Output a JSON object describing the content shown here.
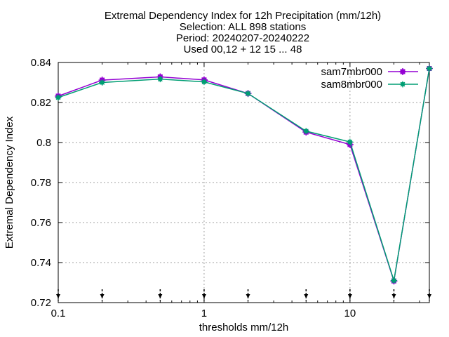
{
  "chart_data": {
    "type": "line",
    "title_lines": [
      "Extremal Dependency Index  for 12h Precipitation (mm/12h)",
      "Selection: ALL    898 stations",
      "Period: 20240207-20240222",
      "Used 00,12 + 12 15 ... 48"
    ],
    "xlabel": "thresholds mm/12h",
    "ylabel": "Extremal Dependency Index",
    "x_scale": "log",
    "xlim": [
      0.1,
      35
    ],
    "ylim": [
      0.72,
      0.84
    ],
    "x_ticks": [
      {
        "value": 0.1,
        "label": "0.1"
      },
      {
        "value": 1,
        "label": "1"
      },
      {
        "value": 10,
        "label": "10"
      }
    ],
    "y_ticks": [
      {
        "value": 0.72,
        "label": "0.72"
      },
      {
        "value": 0.74,
        "label": "0.74"
      },
      {
        "value": 0.76,
        "label": "0.76"
      },
      {
        "value": 0.78,
        "label": "0.78"
      },
      {
        "value": 0.8,
        "label": "0.8"
      },
      {
        "value": 0.82,
        "label": "0.82"
      },
      {
        "value": 0.84,
        "label": "0.84"
      }
    ],
    "grid": true,
    "legend_position": "top-right",
    "x": [
      0.1,
      0.2,
      0.5,
      1,
      2,
      5,
      10,
      20,
      35
    ],
    "series": [
      {
        "name": "sam7mbr000",
        "color": "#9400d3",
        "marker": "plus-square",
        "values": [
          0.8232,
          0.8312,
          0.8328,
          0.8313,
          0.8245,
          0.8052,
          0.799,
          0.7308,
          0.837
        ]
      },
      {
        "name": "sam8mbr000",
        "color": "#009e73",
        "marker": "circle-star",
        "values": [
          0.8225,
          0.83,
          0.8317,
          0.8303,
          0.8245,
          0.8057,
          0.8003,
          0.731,
          0.837
        ]
      }
    ],
    "bottom_markers_x": [
      0.1,
      0.2,
      0.5,
      1,
      2,
      5,
      10,
      20,
      35
    ]
  }
}
